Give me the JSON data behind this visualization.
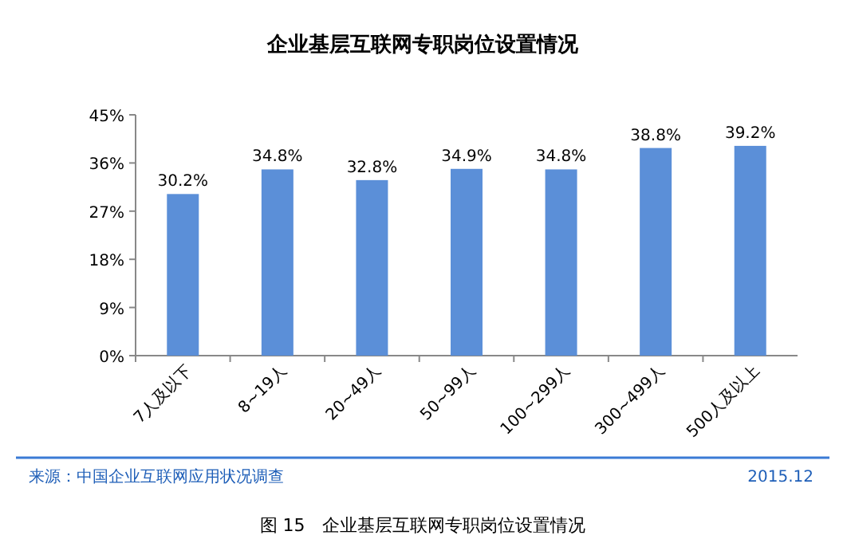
{
  "chart_data": {
    "type": "bar",
    "title": "企业基层互联网专职岗位设置情况",
    "categories": [
      "7人及以下",
      "8~19人",
      "20~49人",
      "50~99人",
      "100~299人",
      "300~499人",
      "500人及以上"
    ],
    "values": [
      30.2,
      34.8,
      32.8,
      34.9,
      34.8,
      38.8,
      39.2
    ],
    "value_labels": [
      "30.2%",
      "34.8%",
      "32.8%",
      "34.9%",
      "34.8%",
      "38.8%",
      "39.2%"
    ],
    "color": "#5b8fd8",
    "ylim": [
      0,
      45
    ],
    "yticks": [
      {
        "value": 0,
        "label": "0%"
      },
      {
        "value": 9,
        "label": "9%"
      },
      {
        "value": 18,
        "label": "18%"
      },
      {
        "value": 27,
        "label": "27%"
      },
      {
        "value": 36,
        "label": "36%"
      },
      {
        "value": 45,
        "label": "45%"
      }
    ],
    "annotations": [
      "来源：中国企业互联网应用状况调查",
      "2015.12",
      "图 15　企业基层互联网专职岗位设置情况"
    ]
  }
}
